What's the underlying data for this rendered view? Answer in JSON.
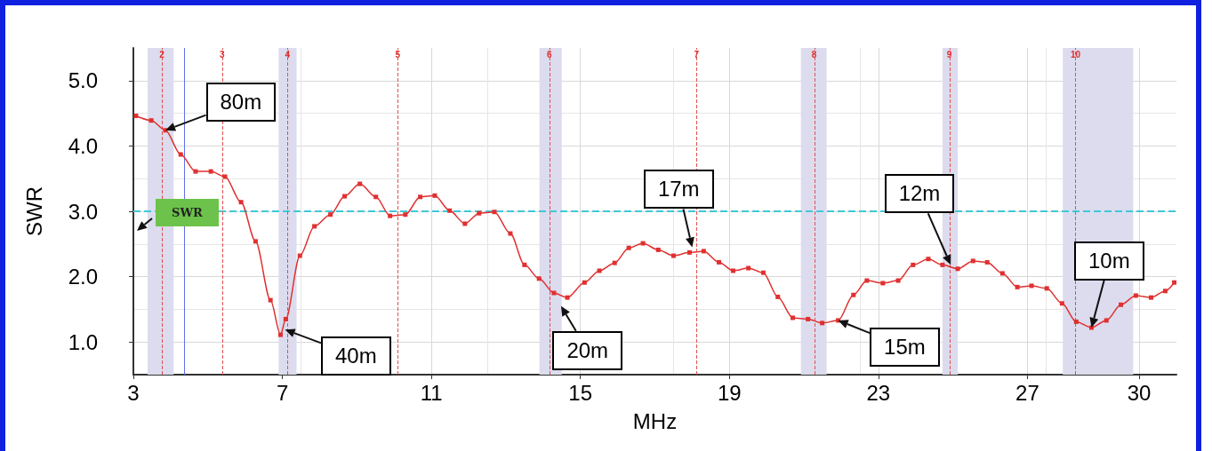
{
  "chart_data": {
    "type": "line",
    "xlabel": "MHz",
    "ylabel": "SWR",
    "series": [
      {
        "color": "#e03030",
        "x": [
          3.07,
          3.48,
          3.86,
          4.27,
          4.67,
          5.08,
          5.46,
          5.89,
          6.28,
          6.68,
          6.95,
          7.09,
          7.47,
          7.86,
          8.29,
          8.67,
          9.08,
          9.51,
          9.89,
          10.3,
          10.7,
          11.09,
          11.49,
          11.9,
          12.28,
          12.69,
          13.12,
          13.5,
          13.89,
          14.29,
          14.65,
          15.11,
          15.51,
          15.92,
          16.3,
          16.68,
          17.09,
          17.5,
          17.93,
          18.31,
          18.72,
          19.1,
          19.51,
          19.91,
          20.3,
          20.7,
          21.11,
          21.49,
          21.92,
          22.33,
          22.69,
          23.12,
          23.53,
          23.93,
          24.34,
          24.72,
          25.13,
          25.54,
          25.92,
          26.33,
          26.73,
          27.11,
          27.52,
          27.93,
          28.31,
          28.72,
          29.12,
          29.51,
          29.91,
          30.32,
          30.7,
          30.94
        ],
        "values": [
          4.46,
          4.39,
          4.24,
          3.87,
          3.61,
          3.61,
          3.53,
          3.14,
          2.54,
          1.64,
          1.11,
          1.35,
          2.32,
          2.77,
          2.95,
          3.23,
          3.42,
          3.22,
          2.93,
          2.95,
          3.22,
          3.24,
          3.01,
          2.81,
          2.97,
          2.99,
          2.66,
          2.18,
          1.97,
          1.75,
          1.68,
          1.91,
          2.09,
          2.21,
          2.44,
          2.51,
          2.41,
          2.32,
          2.37,
          2.39,
          2.22,
          2.09,
          2.13,
          2.06,
          1.69,
          1.37,
          1.35,
          1.29,
          1.33,
          1.72,
          1.94,
          1.9,
          1.94,
          2.18,
          2.27,
          2.18,
          2.12,
          2.24,
          2.22,
          2.05,
          1.84,
          1.86,
          1.82,
          1.59,
          1.31,
          1.22,
          1.33,
          1.57,
          1.71,
          1.68,
          1.78,
          1.91
        ]
      }
    ],
    "marker": "square",
    "line_style": "solid",
    "grid": true,
    "xlim": [
      3,
      31
    ],
    "xticks": [
      3,
      7,
      11,
      15,
      19,
      23,
      27,
      30
    ],
    "ylim": [
      0.5,
      5.5
    ],
    "yticks": [
      {
        "value": 1,
        "label": "1.0"
      },
      {
        "value": 2,
        "label": "2.0"
      },
      {
        "value": 3,
        "label": "3.0"
      },
      {
        "value": 4,
        "label": "4.0"
      },
      {
        "value": 5,
        "label": "5.0"
      }
    ],
    "ref_lines": [
      {
        "axis": "y",
        "value": 3.0,
        "label": "SWR",
        "color": "#40c8d8",
        "line_style": "dashed"
      },
      {
        "axis": "x",
        "value": 4.36,
        "label": null,
        "color": "#6070e8",
        "line_style": "solid"
      },
      {
        "axis": "x",
        "value": 3.77,
        "label": null,
        "color": "#e05050",
        "line_style": "dashed"
      },
      {
        "axis": "x",
        "value": 5.39,
        "label": null,
        "color": "#e05050",
        "line_style": "dashed"
      },
      {
        "axis": "x",
        "value": 7.14,
        "label": null,
        "color": "#e05050",
        "line_style": "dashed"
      },
      {
        "axis": "x",
        "value": 10.1,
        "label": null,
        "color": "#e05050",
        "line_style": "dashed"
      },
      {
        "axis": "x",
        "value": 14.17,
        "label": null,
        "color": "#e05050",
        "line_style": "dashed"
      },
      {
        "axis": "x",
        "value": 18.12,
        "label": null,
        "color": "#e05050",
        "line_style": "dashed"
      },
      {
        "axis": "x",
        "value": 21.28,
        "label": null,
        "color": "#e05050",
        "line_style": "dashed"
      },
      {
        "axis": "x",
        "value": 24.91,
        "label": null,
        "color": "#e05050",
        "line_style": "dashed"
      },
      {
        "axis": "x",
        "value": 28.29,
        "label": null,
        "color": "#e05050",
        "line_style": "dashed"
      }
    ],
    "bands": [
      {
        "axis": "x",
        "from": 3.38,
        "to": 4.08,
        "color": "#dcdcee"
      },
      {
        "axis": "x",
        "from": 6.9,
        "to": 7.38,
        "color": "#dcdcee"
      },
      {
        "axis": "x",
        "from": 13.9,
        "to": 14.5,
        "color": "#dcdcee"
      },
      {
        "axis": "x",
        "from": 20.92,
        "to": 21.61,
        "color": "#dcdcee"
      },
      {
        "axis": "x",
        "from": 24.72,
        "to": 25.13,
        "color": "#dcdcee"
      },
      {
        "axis": "x",
        "from": 27.95,
        "to": 29.84,
        "color": "#dcdcee"
      }
    ],
    "annotations": [
      {
        "text": "80m",
        "x": 3.86,
        "y": 4.24
      },
      {
        "text": "40m",
        "x": 7.07,
        "y": 1.19
      },
      {
        "text": "20m",
        "x": 14.48,
        "y": 1.55
      },
      {
        "text": "17m",
        "x": 18.0,
        "y": 2.45
      },
      {
        "text": "15m",
        "x": 21.92,
        "y": 1.33
      },
      {
        "text": "12m",
        "x": 24.94,
        "y": 2.18
      },
      {
        "text": "10m",
        "x": 28.72,
        "y": 1.22
      },
      {
        "text": "2",
        "x": 3.77,
        "y": 5.5
      },
      {
        "text": "3",
        "x": 5.39,
        "y": 5.5
      },
      {
        "text": "4",
        "x": 7.14,
        "y": 5.5
      },
      {
        "text": "5",
        "x": 10.1,
        "y": 5.5
      },
      {
        "text": "6",
        "x": 14.17,
        "y": 5.5
      },
      {
        "text": "7",
        "x": 18.12,
        "y": 5.5
      },
      {
        "text": "8",
        "x": 21.28,
        "y": 5.5
      },
      {
        "text": "9",
        "x": 24.91,
        "y": 5.5
      },
      {
        "text": "10",
        "x": 28.29,
        "y": 5.5
      }
    ]
  }
}
